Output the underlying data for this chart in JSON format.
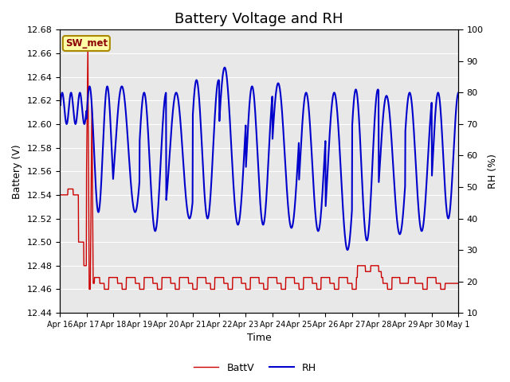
{
  "title": "Battery Voltage and RH",
  "xlabel": "Time",
  "ylabel_left": "Battery (V)",
  "ylabel_right": "RH (%)",
  "ylim_left": [
    12.44,
    12.68
  ],
  "ylim_right": [
    10,
    100
  ],
  "yticks_left": [
    12.44,
    12.46,
    12.48,
    12.5,
    12.52,
    12.54,
    12.56,
    12.58,
    12.6,
    12.62,
    12.64,
    12.66,
    12.68
  ],
  "yticks_right": [
    10,
    20,
    30,
    40,
    50,
    60,
    70,
    80,
    90,
    100
  ],
  "station_label": "SW_met",
  "bg_color": "#e8e8e8",
  "line_color_batt": "#cc0000",
  "line_color_rh": "#0000cc",
  "legend_labels": [
    "BattV",
    "RH"
  ],
  "title_fontsize": 13,
  "tick_labels": [
    "Apr 16",
    "Apr 17",
    "Apr 18",
    "Apr 19",
    "Apr 20",
    "Apr 21",
    "Apr 22",
    "Apr 23",
    "Apr 24",
    "Apr 25",
    "Apr 26",
    "Apr 27",
    "Apr 28",
    "Apr 29",
    "Apr 30",
    "May 1"
  ]
}
